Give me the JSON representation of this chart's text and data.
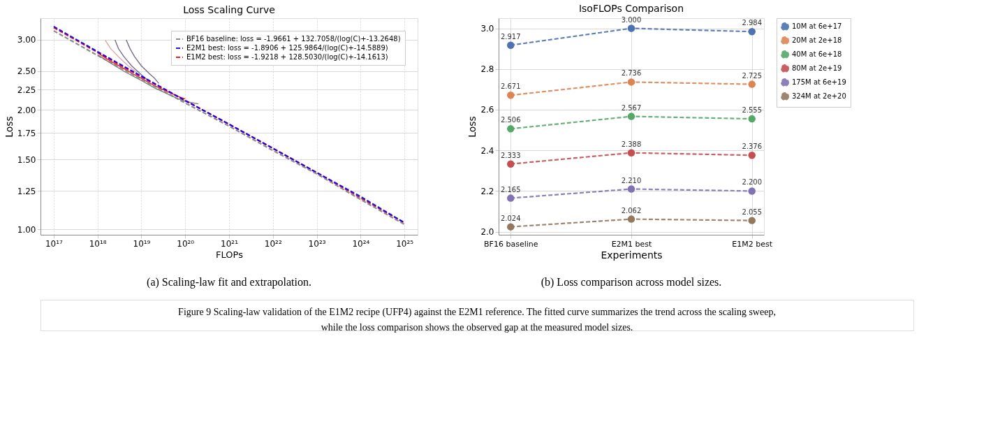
{
  "chart_data": [
    {
      "type": "line",
      "title": "Loss Scaling Curve",
      "xlabel": "FLOPs",
      "ylabel": "Loss",
      "log": "xy",
      "grid": true,
      "legend": "top right",
      "xlim": [
        5e+16,
        2e+25
      ],
      "ylim": [
        0.97,
        3.4
      ],
      "xticks": [
        {
          "value": 1e+17,
          "label": "10¹⁷"
        },
        {
          "value": 1e+18,
          "label": "10¹⁸"
        },
        {
          "value": 1e+19,
          "label": "10¹⁹"
        },
        {
          "value": 1e+20,
          "label": "10²⁰"
        },
        {
          "value": 1e+21,
          "label": "10²¹"
        },
        {
          "value": 1e+22,
          "label": "10²²"
        },
        {
          "value": 1e+23,
          "label": "10²³"
        },
        {
          "value": 1e+24,
          "label": "10²⁴"
        },
        {
          "value": 1e+25,
          "label": "10²⁵"
        }
      ],
      "yticks": [
        {
          "value": 1.0,
          "label": "1.00"
        },
        {
          "value": 1.25,
          "label": "1.25"
        },
        {
          "value": 1.5,
          "label": "1.50"
        },
        {
          "value": 1.75,
          "label": "1.75"
        },
        {
          "value": 2.0,
          "label": "2.00"
        },
        {
          "value": 2.25,
          "label": "2.25"
        },
        {
          "value": 2.5,
          "label": "2.50"
        },
        {
          "value": 3.0,
          "label": "3.00"
        }
      ],
      "series": [
        {
          "color": "#707070",
          "line_style": "solid",
          "x": [
            1e+18,
            2e+18,
            4e+18,
            7e+18,
            1e+19,
            2e+19,
            4e+19,
            7e+19,
            1.2e+20,
            2e+20
          ],
          "values": [
            2.75,
            2.62,
            2.5,
            2.42,
            2.37,
            2.27,
            2.19,
            2.13,
            2.09,
            2.07
          ]
        },
        {
          "color": "#d9a0a0",
          "line_style": "solid",
          "x": [
            1.5e+18,
            2e+18,
            3e+18,
            5e+18,
            8e+18
          ],
          "values": [
            2.99,
            2.85,
            2.72,
            2.58,
            2.48
          ]
        },
        {
          "color": "#6a5a7a",
          "line_style": "solid",
          "x": [
            2.5e+18,
            3e+18,
            4e+18,
            6e+18,
            1e+19,
            1.5e+19
          ],
          "values": [
            3.0,
            2.85,
            2.72,
            2.58,
            2.45,
            2.36
          ]
        },
        {
          "color": "#6a5a7a",
          "line_style": "solid",
          "x": [
            4.5e+18,
            5.5e+18,
            7e+18,
            1e+19,
            1.5e+19,
            2e+19,
            2.5e+19
          ],
          "values": [
            3.0,
            2.85,
            2.72,
            2.58,
            2.47,
            2.4,
            2.33
          ]
        },
        {
          "color": "#ff0000",
          "line_style": "solid",
          "x": [
            1e+18,
            2e+18,
            4e+18,
            7e+18,
            1e+19,
            2e+19,
            4e+19,
            7e+19,
            1e+20
          ],
          "values": [
            2.78,
            2.65,
            2.54,
            2.45,
            2.4,
            2.3,
            2.22,
            2.16,
            2.13
          ]
        },
        {
          "name": "BF16 baseline: loss = -1.9661 + 132.7058/(log(C)+-13.2648)",
          "color": "#808080",
          "line_style": "dashed",
          "x": [
            1e+17,
            1e+18,
            1e+19,
            1e+20,
            1e+21,
            1e+22,
            1e+23,
            1e+24,
            1e+25
          ],
          "values": [
            3.16,
            2.74,
            2.39,
            2.08,
            1.82,
            1.58,
            1.38,
            1.19,
            1.03
          ]
        },
        {
          "name": "E2M1 best: loss = -1.8906 + 125.9864/(log(C)+-14.5889)",
          "color": "#0000ff",
          "line_style": "dashed",
          "x": [
            1e+17,
            1e+18,
            1e+19,
            1e+20,
            1e+21,
            1e+22,
            1e+23,
            1e+24,
            1e+25
          ],
          "values": [
            3.24,
            2.8,
            2.43,
            2.11,
            1.84,
            1.6,
            1.39,
            1.21,
            1.04
          ]
        },
        {
          "name": "E1M2 best: loss = -1.9218 + 128.5030/(log(C)+-14.1613)",
          "color": "#ff0000",
          "line_style": "dashed",
          "x": [
            1e+17,
            1e+18,
            1e+19,
            1e+20,
            1e+21,
            1e+22,
            1e+23,
            1e+24,
            1e+25
          ],
          "values": [
            3.22,
            2.79,
            2.42,
            2.11,
            1.84,
            1.6,
            1.39,
            1.2,
            1.04
          ]
        }
      ],
      "annotations": [
        "(a)  Scaling-law fit and extrapolation."
      ]
    },
    {
      "type": "line",
      "title": "IsoFLOPs Comparison",
      "xlabel": "Experiments",
      "ylabel": "Loss",
      "grid": true,
      "legend": "right",
      "marker": "circle",
      "line_style": "dashed",
      "categories": [
        "BF16 baseline",
        "E2M1 best",
        "E1M2 best"
      ],
      "ylim": [
        1.985,
        3.05
      ],
      "yticks": [
        {
          "value": 2.0,
          "label": "2.0"
        },
        2.2,
        2.4,
        2.6,
        2.8,
        {
          "value": 3.0,
          "label": "3.0"
        }
      ],
      "series": [
        {
          "name": "10M at 6e+17",
          "color": "#4c72b0",
          "values": [
            2.917,
            3.0,
            2.984
          ],
          "value_labels": [
            "2.917",
            "3.000",
            "2.984"
          ]
        },
        {
          "name": "20M at 2e+18",
          "color": "#dd8452",
          "values": [
            2.671,
            2.736,
            2.725
          ],
          "value_labels": [
            "2.671",
            "2.736",
            "2.725"
          ]
        },
        {
          "name": "40M at 6e+18",
          "color": "#55a868",
          "values": [
            2.506,
            2.567,
            2.555
          ],
          "value_labels": [
            "2.506",
            "2.567",
            "2.555"
          ]
        },
        {
          "name": "80M at 2e+19",
          "color": "#c44e52",
          "values": [
            2.333,
            2.388,
            2.376
          ],
          "value_labels": [
            "2.333",
            "2.388",
            "2.376"
          ]
        },
        {
          "name": "175M at 6e+19",
          "color": "#8172b3",
          "values": [
            2.165,
            2.21,
            2.2
          ],
          "value_labels": [
            "2.165",
            "2.210",
            "2.200"
          ]
        },
        {
          "name": "324M at 2e+20",
          "color": "#937860",
          "values": [
            2.024,
            2.062,
            2.055
          ],
          "value_labels": [
            "2.024",
            "2.062",
            "2.055"
          ]
        }
      ],
      "annotations": [
        "(b)  Loss comparison across model sizes."
      ]
    },
    {
      "type": "other",
      "annotations": [
        "Figure 9  Scaling-law validation of the E1M2 recipe (UFP4) against the E2M1 reference. The fitted curve summarizes the trend across the scaling sweep, while the loss comparison shows the observed gap at the measured model sizes."
      ]
    }
  ]
}
